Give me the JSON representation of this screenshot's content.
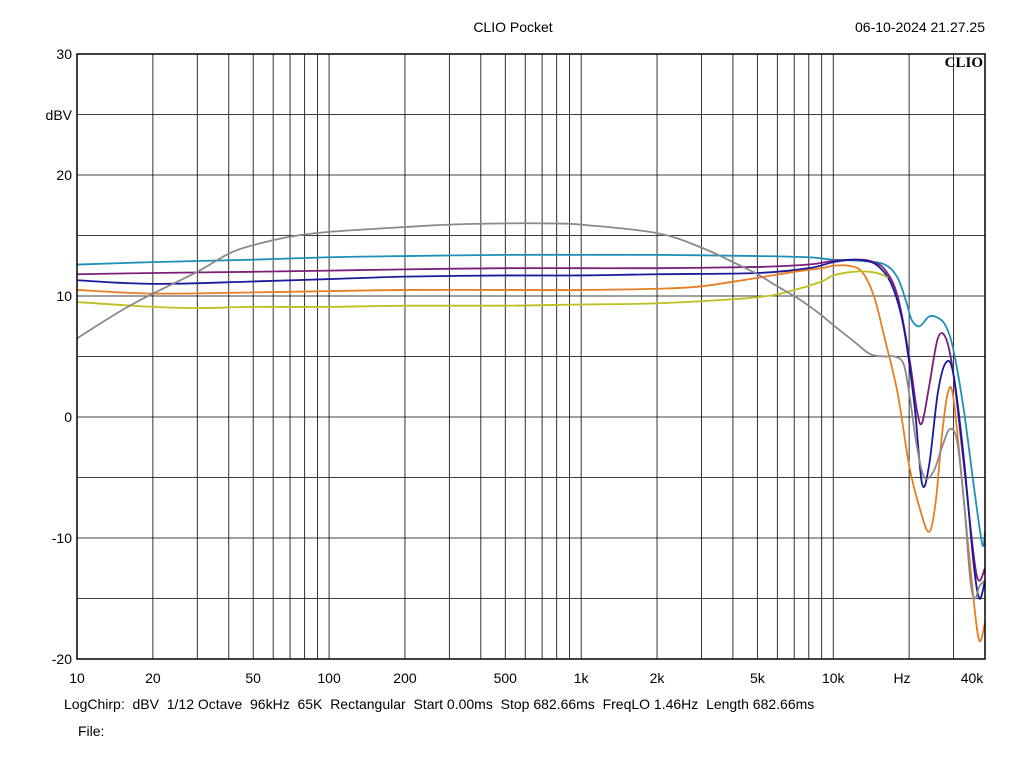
{
  "header": {
    "app_title": "CLIO Pocket",
    "timestamp": "06-10-2024 21.27.25",
    "logo_text": "CLIO"
  },
  "chart_data": {
    "type": "line",
    "title": "",
    "ylabel": "dBV",
    "xlabel": "Hz",
    "xscale": "log",
    "xlim": [
      10,
      40000
    ],
    "ylim": [
      -20,
      30
    ],
    "grid": true,
    "legend": "none",
    "y_ticks": [
      {
        "value": 30,
        "label": "30"
      },
      {
        "value": 20,
        "label": "20"
      },
      {
        "value": 10,
        "label": "10"
      },
      {
        "value": 0,
        "label": "0"
      },
      {
        "value": -10,
        "label": "-10"
      },
      {
        "value": -20,
        "label": "-20"
      }
    ],
    "x_ticks": [
      {
        "value": 10,
        "label": "10"
      },
      {
        "value": 20,
        "label": "20"
      },
      {
        "value": 50,
        "label": "50"
      },
      {
        "value": 100,
        "label": "100"
      },
      {
        "value": 200,
        "label": "200"
      },
      {
        "value": 500,
        "label": "500"
      },
      {
        "value": 1000,
        "label": "1k"
      },
      {
        "value": 2000,
        "label": "2k"
      },
      {
        "value": 5000,
        "label": "5k"
      },
      {
        "value": 10000,
        "label": "10k"
      },
      {
        "value": 40000,
        "label": "40k"
      }
    ],
    "series": [
      {
        "color": "#1e90b8",
        "x": [
          10,
          20,
          50,
          100,
          200,
          500,
          1000,
          2000,
          5000,
          8000,
          10000,
          13000,
          16000,
          18000,
          19500,
          20500,
          22000,
          24000,
          26000,
          28000,
          30000,
          33000,
          36000,
          39000,
          40000
        ],
        "y": [
          12.6,
          12.8,
          13.0,
          13.2,
          13.3,
          13.4,
          13.4,
          13.4,
          13.3,
          13.2,
          13.0,
          12.9,
          12.6,
          11.5,
          9.5,
          8.0,
          7.5,
          8.3,
          8.2,
          7.5,
          5.5,
          0.5,
          -5.5,
          -10.5,
          -9.5
        ]
      },
      {
        "color": "#7b1f7b",
        "x": [
          10,
          20,
          50,
          100,
          200,
          500,
          1000,
          2000,
          5000,
          8000,
          10000,
          12500,
          14000,
          16000,
          18000,
          20000,
          21500,
          22500,
          24000,
          26000,
          28000,
          30000,
          33000,
          37000,
          40000
        ],
        "y": [
          11.8,
          11.9,
          12.0,
          12.1,
          12.2,
          12.3,
          12.3,
          12.3,
          12.4,
          12.6,
          12.9,
          13.0,
          12.9,
          12.2,
          10.0,
          5.0,
          0.5,
          -0.5,
          2.5,
          6.5,
          6.5,
          3.5,
          -4.0,
          -13.0,
          -12.5
        ]
      },
      {
        "color": "#1a1a9c",
        "x": [
          10,
          20,
          50,
          100,
          200,
          500,
          1000,
          2000,
          5000,
          8000,
          10000,
          12000,
          13500,
          15000,
          17000,
          19000,
          21000,
          22500,
          24000,
          26000,
          28000,
          30000,
          33000,
          36000,
          38000,
          40000
        ],
        "y": [
          11.3,
          11.0,
          11.2,
          11.4,
          11.6,
          11.7,
          11.7,
          11.8,
          11.9,
          12.3,
          12.8,
          13.0,
          12.9,
          12.5,
          11.0,
          7.5,
          1.0,
          -5.5,
          -4.0,
          2.0,
          4.5,
          3.5,
          -3.5,
          -12.0,
          -15.0,
          -13.5
        ]
      },
      {
        "color": "#e67e22",
        "x": [
          10,
          20,
          50,
          100,
          200,
          500,
          1000,
          2000,
          3000,
          5000,
          7000,
          9000,
          10000,
          11500,
          13000,
          14500,
          16000,
          18000,
          20000,
          22000,
          24000,
          25500,
          27000,
          28500,
          30000,
          33000,
          36000,
          38000,
          40000
        ],
        "y": [
          10.5,
          10.2,
          10.3,
          10.4,
          10.5,
          10.5,
          10.5,
          10.6,
          10.8,
          11.5,
          12.0,
          12.3,
          12.5,
          12.5,
          12.0,
          10.0,
          6.5,
          2.0,
          -4.0,
          -7.5,
          -9.5,
          -7.0,
          -1.5,
          2.0,
          1.5,
          -7.0,
          -15.0,
          -18.5,
          -17.0
        ]
      },
      {
        "color": "#bfbf1f",
        "x": [
          10,
          20,
          30,
          50,
          100,
          200,
          500,
          1000,
          2000,
          5000,
          7000,
          9000,
          10000,
          12000,
          14000,
          15500,
          16500
        ],
        "y": [
          9.5,
          9.1,
          9.0,
          9.1,
          9.1,
          9.2,
          9.2,
          9.3,
          9.4,
          9.9,
          10.5,
          11.2,
          11.7,
          12.0,
          12.0,
          11.8,
          11.5
        ]
      },
      {
        "color": "#8a8a8a",
        "x": [
          10,
          15,
          20,
          30,
          40,
          50,
          70,
          100,
          200,
          300,
          500,
          700,
          1000,
          2000,
          3000,
          4000,
          5000,
          6000,
          7000,
          8000,
          9000,
          10000,
          12000,
          14000,
          16000,
          17500,
          19000,
          20000,
          21500,
          23000,
          25000,
          27000,
          29000,
          31000,
          33000,
          35000,
          36500,
          38000,
          40000
        ],
        "y": [
          6.5,
          8.8,
          10.2,
          12.0,
          13.5,
          14.2,
          14.9,
          15.3,
          15.7,
          15.9,
          16.0,
          16.0,
          15.9,
          15.2,
          14.0,
          12.8,
          11.8,
          10.8,
          10.0,
          9.2,
          8.4,
          7.6,
          6.3,
          5.2,
          5.0,
          5.0,
          4.4,
          2.0,
          -2.5,
          -5.0,
          -4.5,
          -2.5,
          -1.0,
          -2.0,
          -7.0,
          -13.5,
          -15.0,
          -14.0,
          -13.5
        ]
      }
    ]
  },
  "status_bar": {
    "mode": "LogChirp:",
    "unit": "dBV",
    "smoothing": "1/12 Octave",
    "sample_rate": "96kHz",
    "size": "65K",
    "window": "Rectangular",
    "start": "Start 0.00ms",
    "stop": "Stop 682.66ms",
    "freq_lo": "FreqLO 1.46Hz",
    "length": "Length 682.66ms",
    "file_label": "File:"
  }
}
